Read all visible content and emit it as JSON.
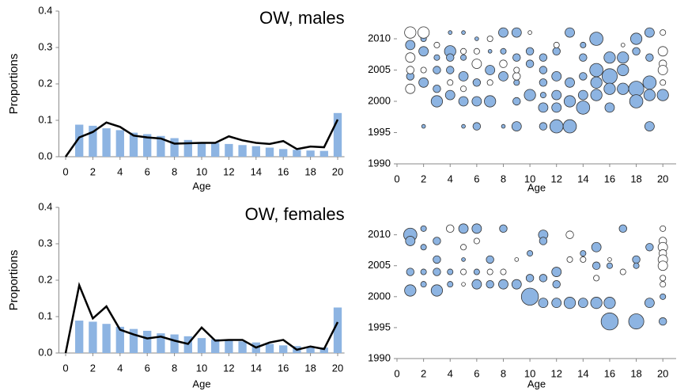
{
  "chart_data": [
    {
      "type": "bar_line",
      "title": "OW, males",
      "ylabel": "Proportions",
      "xlabel": "Age",
      "x": [
        0,
        1,
        2,
        3,
        4,
        5,
        6,
        7,
        8,
        9,
        10,
        11,
        12,
        13,
        14,
        15,
        16,
        17,
        18,
        19,
        20
      ],
      "series": [
        {
          "type": "bar",
          "color": "#8db4e2",
          "values": [
            0,
            0.088,
            0.085,
            0.078,
            0.073,
            0.066,
            0.062,
            0.057,
            0.051,
            0.046,
            0.04,
            0.038,
            0.035,
            0.032,
            0.029,
            0.025,
            0.021,
            0.019,
            0.017,
            0.016,
            0.12
          ]
        },
        {
          "type": "line",
          "color": "#000000",
          "values": [
            0,
            0.053,
            0.068,
            0.094,
            0.082,
            0.058,
            0.053,
            0.05,
            0.036,
            0.037,
            0.038,
            0.038,
            0.056,
            0.045,
            0.038,
            0.035,
            0.043,
            0.021,
            0.028,
            0.026,
            0.102
          ]
        }
      ],
      "xlim": [
        -0.5,
        20.5
      ],
      "xticks": [
        0,
        2,
        4,
        6,
        8,
        10,
        12,
        14,
        16,
        18,
        20
      ],
      "ylim": [
        0,
        0.4
      ],
      "yticks": [
        {
          "value": 0,
          "label": "0.0"
        },
        0.1,
        0.2,
        0.3,
        0.4
      ]
    },
    {
      "type": "bubble",
      "xlabel": "Age",
      "series": [
        {
          "color": "#8db4e2",
          "x": [
            1,
            1,
            2,
            2,
            2,
            2,
            3,
            3,
            3,
            3,
            4,
            4,
            4,
            4,
            4,
            5,
            5,
            5,
            5,
            5,
            6,
            6,
            6,
            6,
            7,
            7,
            7,
            8,
            8,
            8,
            8,
            9,
            9,
            9,
            9,
            9,
            10,
            10,
            10,
            11,
            11,
            11,
            11,
            11,
            11,
            12,
            12,
            12,
            12,
            12,
            13,
            13,
            13,
            13,
            14,
            14,
            14,
            14,
            14,
            15,
            15,
            15,
            15,
            16,
            16,
            16,
            16,
            17,
            17,
            17,
            18,
            18,
            18,
            18,
            19,
            19,
            19,
            19,
            19,
            20
          ],
          "y": [
            2009,
            2004,
            2010,
            2008,
            2003,
            1996,
            2007,
            2005,
            2002,
            2000,
            2011,
            2008,
            2007,
            2005,
            2001,
            2011,
            2007,
            2004,
            2000,
            1996,
            2010,
            2003,
            2000,
            1996,
            2005,
            2000,
            2008,
            2011,
            2008,
            2004,
            1996,
            2011,
            2007,
            2003,
            2000,
            1996,
            2008,
            2006,
            2001,
            2007,
            2005,
            2003,
            2001,
            1999,
            1996,
            2008,
            2004,
            2001,
            1999,
            1996,
            2011,
            2003,
            2000,
            1996,
            2009,
            2007,
            2004,
            2001,
            1999,
            2010,
            2005,
            2003,
            2001,
            2007,
            2004,
            2002,
            1999,
            2007,
            2005,
            2002,
            2010,
            2008,
            2002,
            2000,
            2011,
            2007,
            2003,
            2001,
            1996,
            2001
          ],
          "size": [
            5,
            4,
            3,
            5,
            5,
            2,
            3,
            4,
            4,
            6,
            2,
            6,
            4,
            4,
            5,
            2,
            3,
            5,
            5,
            2,
            2,
            4,
            5,
            4,
            5,
            6,
            2,
            5,
            3,
            5,
            2,
            5,
            4,
            3,
            4,
            5,
            4,
            4,
            6,
            4,
            4,
            4,
            3,
            5,
            4,
            4,
            5,
            5,
            5,
            7,
            5,
            5,
            6,
            7,
            3,
            4,
            4,
            5,
            7,
            7,
            7,
            6,
            6,
            6,
            8,
            6,
            5,
            6,
            6,
            6,
            6,
            4,
            8,
            7,
            5,
            4,
            7,
            6,
            5,
            6
          ]
        },
        {
          "color": "#ffffff",
          "x": [
            1,
            1,
            1,
            1,
            2,
            2,
            3,
            4,
            5,
            5,
            6,
            6,
            7,
            7,
            8,
            9,
            9,
            10,
            12,
            17,
            20,
            20,
            20,
            20,
            20
          ],
          "y": [
            2011,
            2007,
            2005,
            2002,
            2011,
            2005,
            2009,
            2003,
            2002,
            2008,
            2006,
            2008,
            2010,
            2003,
            2006,
            2004,
            2005,
            2011,
            2009,
            2009,
            2011,
            2008,
            2006,
            2005,
            2003
          ],
          "size": [
            6,
            5,
            4,
            5,
            6,
            3,
            3,
            3,
            3,
            3,
            5,
            3,
            3,
            3,
            4,
            4,
            3,
            2,
            3,
            2,
            3,
            5,
            4,
            5,
            3
          ]
        }
      ],
      "xlim": [
        0,
        21
      ],
      "xticks": [
        0,
        2,
        4,
        6,
        8,
        10,
        12,
        14,
        16,
        18,
        20
      ],
      "ylim": [
        1990,
        2012
      ],
      "yticks": [
        1990,
        1995,
        2000,
        2005,
        2010
      ]
    },
    {
      "type": "bar_line",
      "title": "OW, females",
      "ylabel": "Proportions",
      "xlabel": "Age",
      "x": [
        0,
        1,
        2,
        3,
        4,
        5,
        6,
        7,
        8,
        9,
        10,
        11,
        12,
        13,
        14,
        15,
        16,
        17,
        18,
        19,
        20
      ],
      "series": [
        {
          "type": "bar",
          "color": "#8db4e2",
          "values": [
            0,
            0.089,
            0.086,
            0.08,
            0.072,
            0.066,
            0.061,
            0.054,
            0.051,
            0.046,
            0.041,
            0.038,
            0.037,
            0.032,
            0.029,
            0.025,
            0.021,
            0.019,
            0.017,
            0.015,
            0.125
          ]
        },
        {
          "type": "line",
          "color": "#000000",
          "values": [
            0,
            0.186,
            0.095,
            0.128,
            0.064,
            0.051,
            0.04,
            0.045,
            0.034,
            0.025,
            0.07,
            0.034,
            0.036,
            0.036,
            0.015,
            0.029,
            0.036,
            0.009,
            0.018,
            0.011,
            0.085
          ]
        }
      ],
      "xlim": [
        -0.5,
        20.5
      ],
      "xticks": [
        0,
        2,
        4,
        6,
        8,
        10,
        12,
        14,
        16,
        18,
        20
      ],
      "ylim": [
        0,
        0.4
      ],
      "yticks": [
        {
          "value": 0,
          "label": "0.0"
        },
        0.1,
        0.2,
        0.3,
        0.4
      ]
    },
    {
      "type": "bubble",
      "xlabel": "Age",
      "series": [
        {
          "color": "#8db4e2",
          "x": [
            1,
            1,
            1,
            1,
            2,
            2,
            2,
            2,
            3,
            3,
            3,
            3,
            4,
            4,
            4,
            5,
            5,
            6,
            6,
            6,
            7,
            7,
            8,
            8,
            9,
            10,
            10,
            10,
            11,
            11,
            11,
            11,
            12,
            12,
            12,
            13,
            14,
            14,
            15,
            15,
            15,
            16,
            16,
            16,
            17,
            18,
            18,
            18,
            19,
            19,
            20,
            20
          ],
          "y": [
            2010,
            2009,
            2004,
            2001,
            2011,
            2008,
            2004,
            2002,
            2009,
            2006,
            2004,
            2001,
            2011,
            2004,
            2002,
            2011,
            2006,
            2011,
            2004,
            2002,
            2006,
            2002,
            2011,
            2002,
            2002,
            2007,
            2003,
            2000,
            2010,
            2009,
            2003,
            1999,
            2004,
            2002,
            1999,
            1999,
            2007,
            1999,
            2008,
            2005,
            1999,
            2005,
            1996,
            1999,
            2011,
            2006,
            2005,
            1996,
            2008,
            1999,
            2000,
            1996
          ],
          "size": [
            7,
            5,
            4,
            6,
            3,
            3,
            3,
            3,
            4,
            4,
            4,
            6,
            3,
            3,
            3,
            5,
            2,
            5,
            3,
            5,
            4,
            4,
            4,
            5,
            5,
            3,
            4,
            9,
            5,
            4,
            4,
            5,
            5,
            4,
            5,
            6,
            3,
            5,
            5,
            4,
            6,
            3,
            9,
            6,
            4,
            4,
            3,
            8,
            4,
            5,
            3,
            4
          ]
        },
        {
          "color": "#ffffff",
          "x": [
            4,
            5,
            5,
            5,
            6,
            7,
            8,
            9,
            13,
            13,
            17,
            20,
            20,
            20,
            20,
            20,
            20,
            20,
            20,
            16,
            14,
            15
          ],
          "y": [
            2011,
            2008,
            2004,
            2002,
            2009,
            2004,
            2004,
            2006,
            2010,
            2006,
            2004,
            2011,
            2009,
            2008,
            2007,
            2006,
            2005,
            2003,
            2002,
            2006,
            2006,
            2003
          ],
          "size": [
            4,
            3,
            3,
            2,
            3,
            3,
            3,
            2,
            4,
            3,
            3,
            3,
            4,
            5,
            4,
            5,
            5,
            3,
            3,
            2,
            3,
            3
          ]
        }
      ],
      "xlim": [
        0,
        21
      ],
      "xticks": [
        0,
        2,
        4,
        6,
        8,
        10,
        12,
        14,
        16,
        18,
        20
      ],
      "ylim": [
        1990,
        2012
      ],
      "yticks": [
        1990,
        1995,
        2000,
        2005,
        2010
      ]
    }
  ]
}
